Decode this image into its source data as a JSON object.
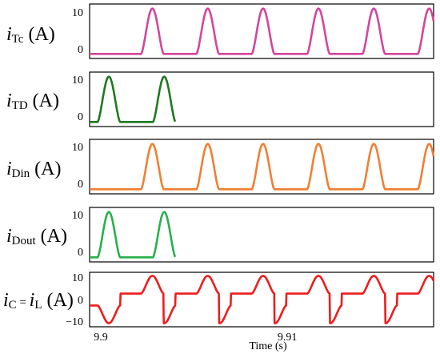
{
  "chart_data": [
    {
      "type": "line",
      "ylabel": {
        "i": "i",
        "sub": "Tc",
        "unit": " (A)"
      },
      "yticks": [
        "10",
        "0"
      ],
      "color": "#d4459a",
      "ylim": [
        -1,
        11
      ],
      "x": [
        9.9,
        9.9032,
        9.9053,
        9.9075,
        9.9096,
        9.9118,
        9.9139
      ],
      "values": [
        0,
        10,
        0,
        10,
        0,
        10,
        0
      ],
      "pulses": {
        "starts": [
          9.9026,
          9.9054,
          9.9082,
          9.911,
          9.9138,
          9.9166
        ],
        "width": 0.00115,
        "peak": 10,
        "shape": "pulse"
      }
    },
    {
      "type": "line",
      "ylabel": {
        "i": "i",
        "sub": "TD",
        "unit": " (A)"
      },
      "yticks": [
        "10",
        "0"
      ],
      "color": "#1e7a1e",
      "ylim": [
        -1,
        11
      ],
      "pulses": {
        "starts": [
          9.9004,
          9.9032,
          9.906,
          9.9088,
          9.9116,
          9.9144
        ],
        "width": 0.00115,
        "peak": 10,
        "shape": "pulse"
      }
    },
    {
      "type": "line",
      "ylabel": {
        "i": "i",
        "sub": "Din",
        "unit": " (A)"
      },
      "yticks": [
        "10",
        "0"
      ],
      "color": "#f07f33",
      "ylim": [
        -1,
        11
      ],
      "pulses": {
        "starts": [
          9.9026,
          9.9054,
          9.9082,
          9.911,
          9.9138,
          9.9166
        ],
        "width": 0.00115,
        "peak": 10,
        "shape": "pulse"
      }
    },
    {
      "type": "line",
      "ylabel": {
        "i": "i",
        "sub": "Dout",
        "unit": " (A)"
      },
      "yticks": [
        "10",
        "0"
      ],
      "color": "#27b04a",
      "ylim": [
        -1,
        11
      ],
      "pulses": {
        "starts": [
          9.9004,
          9.9032,
          9.906,
          9.9088,
          9.9116,
          9.9144
        ],
        "width": 0.00115,
        "peak": 10,
        "shape": "pulse"
      }
    },
    {
      "type": "line",
      "ylabel": {
        "i": "i",
        "sub": "C",
        "eq": " = ",
        "i2": "i",
        "sub2": "L",
        "unit": " (A)"
      },
      "yticks": [
        "10",
        "0",
        "−10"
      ],
      "color": "#ee1c1c",
      "ylim": [
        -11.5,
        11.5
      ],
      "plateau": 2.5,
      "pos_starts": [
        9.9026,
        9.9054,
        9.9082,
        9.911,
        9.9138,
        9.9166
      ],
      "neg_starts": [
        9.9004,
        9.9032,
        9.906,
        9.9088,
        9.9116,
        9.9144
      ],
      "width": 0.00115,
      "peak": 10
    }
  ],
  "xaxis": {
    "xlim": [
      9.9,
      9.9174
    ],
    "xticks": [
      9.9,
      9.91
    ],
    "xtick_labels": [
      "9.9",
      "9.91"
    ],
    "xlabel": "Time (s)"
  }
}
